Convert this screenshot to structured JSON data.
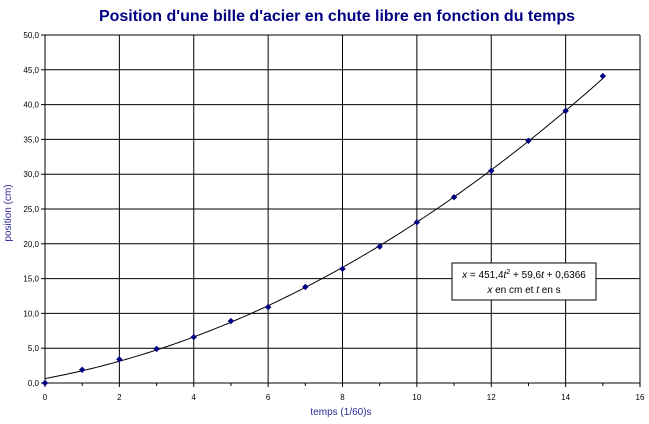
{
  "chart_data": {
    "type": "scatter",
    "title": "Position d'une bille d'acier en chute libre en fonction du temps",
    "xlabel": "temps (1/60)s",
    "ylabel": "position (cm)",
    "xlim": [
      0,
      16
    ],
    "ylim": [
      0,
      50
    ],
    "x_ticks": [
      "0",
      "2",
      "4",
      "6",
      "8",
      "10",
      "12",
      "14",
      "16"
    ],
    "y_ticks": [
      "0,0",
      "5,0",
      "10,0",
      "15,0",
      "20,0",
      "25,0",
      "30,0",
      "35,0",
      "40,0",
      "45,0",
      "50,0"
    ],
    "grid": true,
    "series": [
      {
        "x": [
          0,
          1,
          2,
          3,
          4,
          5,
          6,
          7,
          8,
          9,
          10,
          11,
          12,
          13,
          14,
          15
        ],
        "y": [
          0.0,
          1.9,
          3.4,
          4.9,
          6.6,
          8.9,
          10.9,
          13.8,
          16.4,
          19.6,
          23.1,
          26.7,
          30.5,
          34.8,
          39.1,
          44.1
        ]
      }
    ],
    "trendline": {
      "type": "polynomial",
      "a": 451.4,
      "b": 59.6,
      "c": 0.6366,
      "x_scale": 60
    },
    "colors": {
      "marker": "#000080",
      "line": "#000000",
      "grid": "#000000",
      "title": "#000080"
    },
    "annotation": {
      "part1": "x",
      "part2": " = 451,4",
      "part3": "t",
      "part4": "2",
      "part5": " + 59,6",
      "part6": "t",
      "part7": " + 0,6366",
      "line2a": "x",
      "line2b": " en cm et ",
      "line2c": "t",
      "line2d": " en s"
    }
  }
}
